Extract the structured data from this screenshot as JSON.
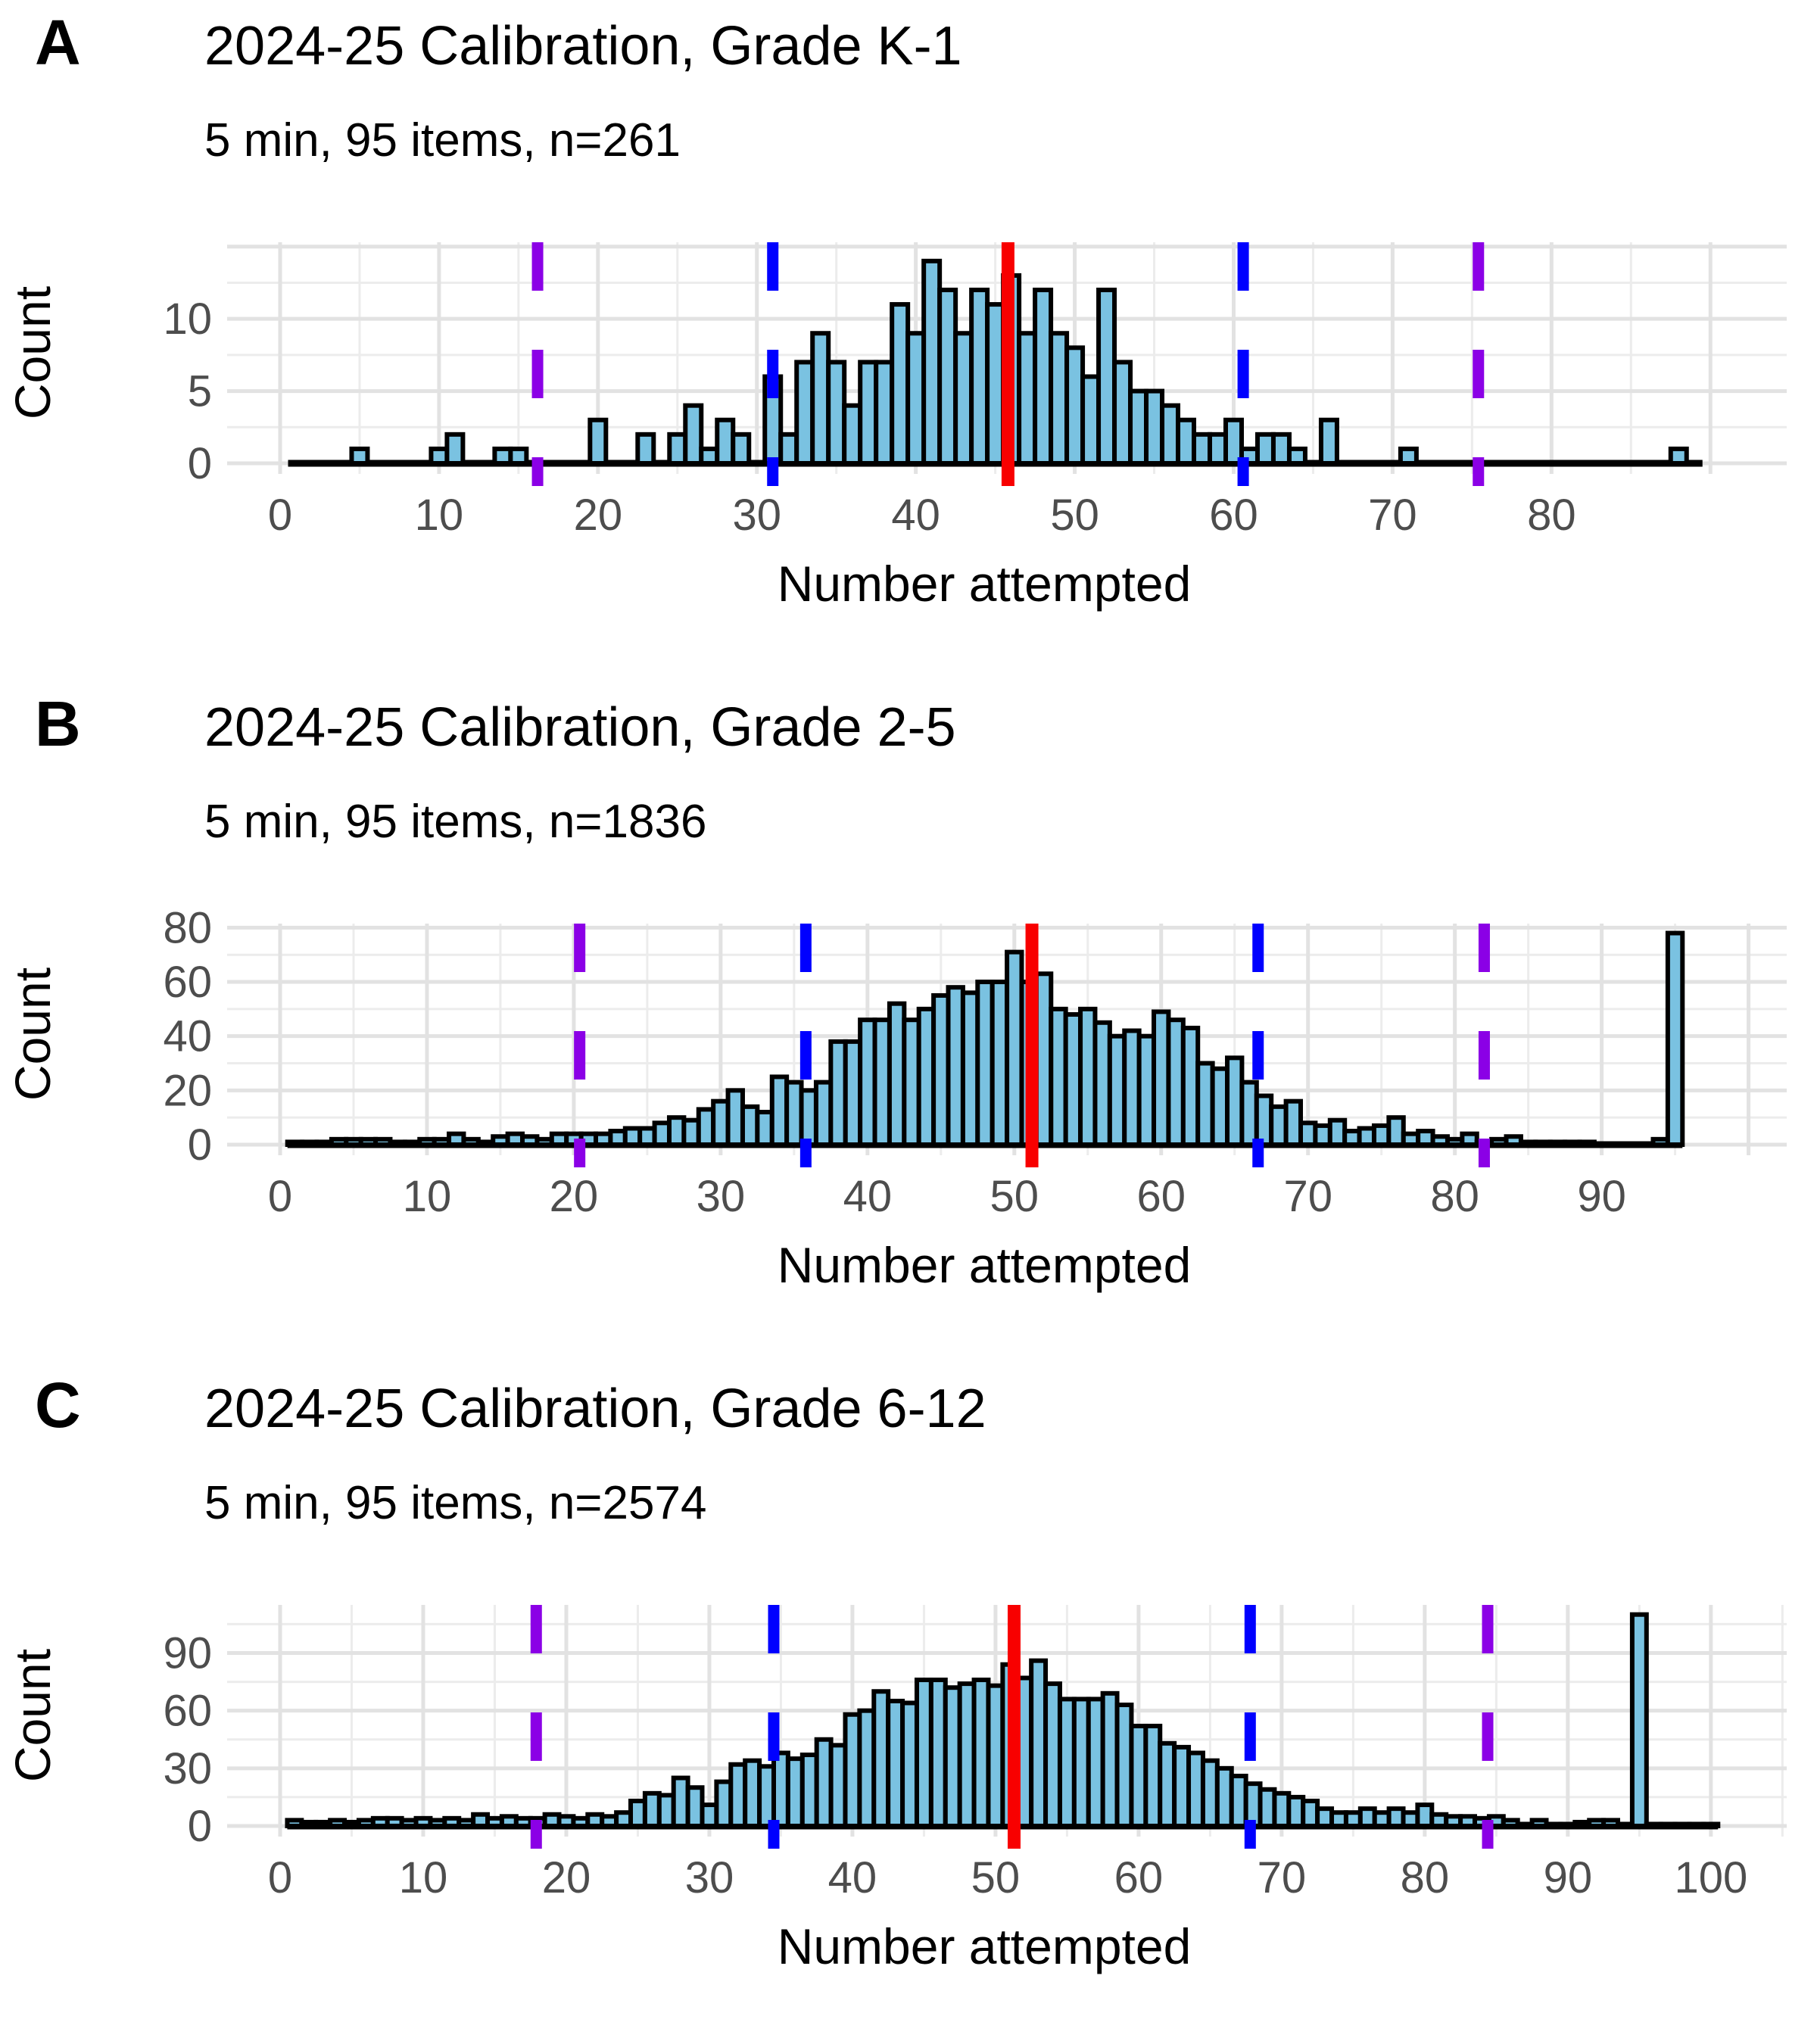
{
  "figure": {
    "xlabel": "Number attempted",
    "ylabel": "Count",
    "colors": {
      "background": "#FFFFFF",
      "bar_fill": "#7AC2E1",
      "bar_stroke": "#000000",
      "baseline": "#000000",
      "mean_line": "#F80000",
      "sd1_line": "#0000FF",
      "sd2_line": "#8B00E6",
      "grid_major": "#E2E2E2",
      "grid_minor": "#ECECEC",
      "tick_label": "#4D4D4D",
      "text": "#000000"
    }
  },
  "chart_data": [
    {
      "type": "bar",
      "panel_label": "A",
      "title": "2024-25 Calibration, Grade K-1",
      "subtitle": "5 min, 95 items, n=261",
      "n": 261,
      "xlabel": "Number attempted",
      "ylabel": "Count",
      "bin_width": 1,
      "x_ticks": [
        0,
        10,
        20,
        30,
        40,
        50,
        60,
        70,
        80
      ],
      "y_ticks": [
        0,
        5,
        10
      ],
      "y_major_step": 5,
      "y_minor_first": 2.5,
      "x_max": 94.8,
      "y_max": 15.3,
      "x_range": [
        1,
        89
      ],
      "lines": {
        "mean": 45.8,
        "sd1": [
          31.0,
          60.6
        ],
        "sd2": [
          16.2,
          75.4
        ]
      },
      "bins": [
        [
          5,
          1
        ],
        [
          10,
          1
        ],
        [
          11,
          2
        ],
        [
          14,
          1
        ],
        [
          15,
          1
        ],
        [
          20,
          3
        ],
        [
          23,
          2
        ],
        [
          25,
          2
        ],
        [
          26,
          4
        ],
        [
          27,
          1
        ],
        [
          28,
          3
        ],
        [
          29,
          2
        ],
        [
          31,
          6
        ],
        [
          32,
          2
        ],
        [
          33,
          7
        ],
        [
          34,
          9
        ],
        [
          35,
          7
        ],
        [
          36,
          4
        ],
        [
          37,
          7
        ],
        [
          38,
          7
        ],
        [
          39,
          11
        ],
        [
          40,
          9
        ],
        [
          41,
          14
        ],
        [
          42,
          12
        ],
        [
          43,
          9
        ],
        [
          44,
          12
        ],
        [
          45,
          11
        ],
        [
          46,
          13
        ],
        [
          47,
          9
        ],
        [
          48,
          12
        ],
        [
          49,
          9
        ],
        [
          50,
          8
        ],
        [
          51,
          6
        ],
        [
          52,
          12
        ],
        [
          53,
          7
        ],
        [
          54,
          5
        ],
        [
          55,
          5
        ],
        [
          56,
          4
        ],
        [
          57,
          3
        ],
        [
          58,
          2
        ],
        [
          59,
          2
        ],
        [
          60,
          3
        ],
        [
          61,
          1
        ],
        [
          62,
          2
        ],
        [
          63,
          2
        ],
        [
          64,
          1
        ],
        [
          66,
          3
        ],
        [
          71,
          1
        ],
        [
          88,
          1
        ]
      ]
    },
    {
      "type": "bar",
      "panel_label": "B",
      "title": "2024-25 Calibration, Grade 2-5",
      "subtitle": "5 min, 95 items, n=1836",
      "n": 1836,
      "xlabel": "Number attempted",
      "ylabel": "Count",
      "bin_width": 1,
      "x_ticks": [
        0,
        10,
        20,
        30,
        40,
        50,
        60,
        70,
        80,
        90
      ],
      "y_ticks": [
        0,
        20,
        40,
        60,
        80
      ],
      "y_major_step": 20,
      "y_minor_first": 10,
      "x_max": 102.6,
      "y_max": 81.5,
      "x_range": [
        1,
        95
      ],
      "lines": {
        "mean": 51.2,
        "sd1": [
          35.8,
          66.6
        ],
        "sd2": [
          20.4,
          82.0
        ]
      },
      "bins": [
        [
          1,
          1
        ],
        [
          2,
          1
        ],
        [
          3,
          1
        ],
        [
          4,
          2
        ],
        [
          5,
          2
        ],
        [
          6,
          2
        ],
        [
          7,
          2
        ],
        [
          8,
          1
        ],
        [
          9,
          1
        ],
        [
          10,
          2
        ],
        [
          11,
          2
        ],
        [
          12,
          4
        ],
        [
          13,
          2
        ],
        [
          14,
          1
        ],
        [
          15,
          3
        ],
        [
          16,
          4
        ],
        [
          17,
          3
        ],
        [
          18,
          2
        ],
        [
          19,
          4
        ],
        [
          20,
          4
        ],
        [
          21,
          4
        ],
        [
          22,
          4
        ],
        [
          23,
          5
        ],
        [
          24,
          6
        ],
        [
          25,
          6
        ],
        [
          26,
          8
        ],
        [
          27,
          10
        ],
        [
          28,
          9
        ],
        [
          29,
          13
        ],
        [
          30,
          16
        ],
        [
          31,
          20
        ],
        [
          32,
          14
        ],
        [
          33,
          12
        ],
        [
          34,
          25
        ],
        [
          35,
          23
        ],
        [
          36,
          20
        ],
        [
          37,
          23
        ],
        [
          38,
          38
        ],
        [
          39,
          38
        ],
        [
          40,
          46
        ],
        [
          41,
          46
        ],
        [
          42,
          52
        ],
        [
          43,
          46
        ],
        [
          44,
          50
        ],
        [
          45,
          55
        ],
        [
          46,
          58
        ],
        [
          47,
          56
        ],
        [
          48,
          60
        ],
        [
          49,
          60
        ],
        [
          50,
          71
        ],
        [
          51,
          60
        ],
        [
          52,
          63
        ],
        [
          53,
          50
        ],
        [
          54,
          48
        ],
        [
          55,
          50
        ],
        [
          56,
          45
        ],
        [
          57,
          40
        ],
        [
          58,
          42
        ],
        [
          59,
          40
        ],
        [
          60,
          49
        ],
        [
          61,
          46
        ],
        [
          62,
          43
        ],
        [
          63,
          30
        ],
        [
          64,
          28
        ],
        [
          65,
          32
        ],
        [
          66,
          23
        ],
        [
          67,
          18
        ],
        [
          68,
          14
        ],
        [
          69,
          16
        ],
        [
          70,
          8
        ],
        [
          71,
          7
        ],
        [
          72,
          9
        ],
        [
          73,
          5
        ],
        [
          74,
          6
        ],
        [
          75,
          7
        ],
        [
          76,
          10
        ],
        [
          77,
          4
        ],
        [
          78,
          5
        ],
        [
          79,
          3
        ],
        [
          80,
          2
        ],
        [
          81,
          4
        ],
        [
          82,
          1
        ],
        [
          83,
          2
        ],
        [
          84,
          3
        ],
        [
          85,
          1
        ],
        [
          86,
          1
        ],
        [
          87,
          1
        ],
        [
          88,
          1
        ],
        [
          89,
          1
        ],
        [
          94,
          2
        ],
        [
          95,
          78
        ]
      ]
    },
    {
      "type": "bar",
      "panel_label": "C",
      "title": "2024-25 Calibration, Grade 6-12",
      "subtitle": "5 min, 95 items, n=2574",
      "n": 2574,
      "xlabel": "Number attempted",
      "ylabel": "Count",
      "bin_width": 1,
      "x_ticks": [
        0,
        10,
        20,
        30,
        40,
        50,
        60,
        70,
        80,
        90,
        100
      ],
      "y_ticks": [
        0,
        30,
        60,
        90
      ],
      "y_major_step": 30,
      "y_minor_first": 15,
      "x_max": 105.3,
      "y_max": 115,
      "x_range": [
        1,
        100
      ],
      "lines": {
        "mean": 51.3,
        "sd1": [
          34.5,
          67.8
        ],
        "sd2": [
          17.9,
          84.4
        ]
      },
      "bins": [
        [
          1,
          3
        ],
        [
          2,
          2
        ],
        [
          3,
          2
        ],
        [
          4,
          3
        ],
        [
          5,
          2
        ],
        [
          6,
          3
        ],
        [
          7,
          4
        ],
        [
          8,
          4
        ],
        [
          9,
          3
        ],
        [
          10,
          4
        ],
        [
          11,
          3
        ],
        [
          12,
          4
        ],
        [
          13,
          3
        ],
        [
          14,
          6
        ],
        [
          15,
          4
        ],
        [
          16,
          5
        ],
        [
          17,
          4
        ],
        [
          18,
          4
        ],
        [
          19,
          6
        ],
        [
          20,
          5
        ],
        [
          21,
          4
        ],
        [
          22,
          6
        ],
        [
          23,
          5
        ],
        [
          24,
          7
        ],
        [
          25,
          13
        ],
        [
          26,
          17
        ],
        [
          27,
          16
        ],
        [
          28,
          25
        ],
        [
          29,
          20
        ],
        [
          30,
          11
        ],
        [
          31,
          23
        ],
        [
          32,
          32
        ],
        [
          33,
          34
        ],
        [
          34,
          31
        ],
        [
          35,
          38
        ],
        [
          36,
          35
        ],
        [
          37,
          37
        ],
        [
          38,
          45
        ],
        [
          39,
          42
        ],
        [
          40,
          58
        ],
        [
          41,
          60
        ],
        [
          42,
          70
        ],
        [
          43,
          65
        ],
        [
          44,
          64
        ],
        [
          45,
          76
        ],
        [
          46,
          76
        ],
        [
          47,
          72
        ],
        [
          48,
          74
        ],
        [
          49,
          76
        ],
        [
          50,
          73
        ],
        [
          51,
          84
        ],
        [
          52,
          77
        ],
        [
          53,
          86
        ],
        [
          54,
          74
        ],
        [
          55,
          66
        ],
        [
          56,
          66
        ],
        [
          57,
          66
        ],
        [
          58,
          69
        ],
        [
          59,
          63
        ],
        [
          60,
          52
        ],
        [
          61,
          52
        ],
        [
          62,
          43
        ],
        [
          63,
          41
        ],
        [
          64,
          38
        ],
        [
          65,
          34
        ],
        [
          66,
          30
        ],
        [
          67,
          26
        ],
        [
          68,
          22
        ],
        [
          69,
          19
        ],
        [
          70,
          17
        ],
        [
          71,
          15
        ],
        [
          72,
          13
        ],
        [
          73,
          9
        ],
        [
          74,
          7
        ],
        [
          75,
          7
        ],
        [
          76,
          9
        ],
        [
          77,
          7
        ],
        [
          78,
          9
        ],
        [
          79,
          7
        ],
        [
          80,
          11
        ],
        [
          81,
          6
        ],
        [
          82,
          5
        ],
        [
          83,
          5
        ],
        [
          84,
          4
        ],
        [
          85,
          5
        ],
        [
          86,
          3
        ],
        [
          87,
          1
        ],
        [
          88,
          3
        ],
        [
          89,
          1
        ],
        [
          90,
          1
        ],
        [
          91,
          2
        ],
        [
          92,
          3
        ],
        [
          93,
          3
        ],
        [
          94,
          1
        ],
        [
          95,
          110
        ],
        [
          96,
          1
        ],
        [
          97,
          1
        ],
        [
          98,
          1
        ],
        [
          99,
          1
        ],
        [
          100,
          1
        ]
      ]
    }
  ]
}
